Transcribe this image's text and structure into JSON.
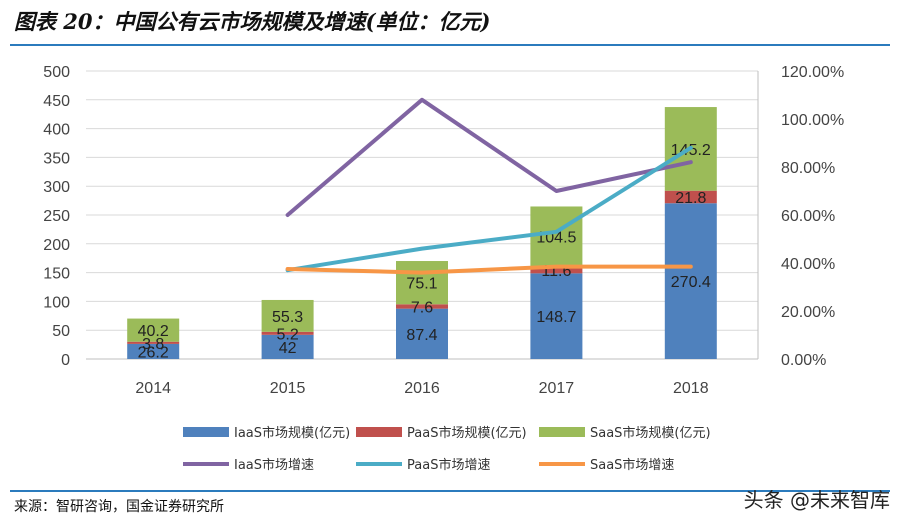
{
  "header": {
    "title": "图表 20：中国公有云市场规模及增速(单位：亿元)"
  },
  "footer": {
    "source": "来源：智研咨询，国金证券研究所",
    "watermark": "头条 @未来智库"
  },
  "colors": {
    "iaas": "#4f81bd",
    "paas": "#c0504d",
    "saas": "#9bbb59",
    "iaas_growth": "#8064a2",
    "paas_growth": "#4bacc6",
    "saas_growth": "#f79646",
    "rule": "#2b7bbd"
  },
  "chart_data": {
    "type": "bar",
    "stacked": true,
    "categories": [
      "2014",
      "2015",
      "2016",
      "2017",
      "2018"
    ],
    "ylim": [
      0,
      500
    ],
    "yticks": [
      0,
      50,
      100,
      150,
      200,
      250,
      300,
      350,
      400,
      450,
      500
    ],
    "y2lim": [
      0,
      1.2
    ],
    "y2ticks": [
      "0.00%",
      "20.00%",
      "40.00%",
      "60.00%",
      "80.00%",
      "100.00%",
      "120.00%"
    ],
    "series": [
      {
        "name": "IaaS市场规模(亿元)",
        "key": "iaas",
        "values": [
          26.2,
          42,
          87.4,
          148.7,
          270.4
        ],
        "labels": [
          "26.2",
          "42",
          "87.4",
          "148.7",
          "270.4"
        ]
      },
      {
        "name": "PaaS市场规模(亿元)",
        "key": "paas",
        "values": [
          3.8,
          5.2,
          7.6,
          11.6,
          21.8
        ],
        "labels": [
          "3.8",
          "5.2",
          "7.6",
          "11.6",
          "21.8"
        ]
      },
      {
        "name": "SaaS市场规模(亿元)",
        "key": "saas",
        "values": [
          40.2,
          55.3,
          75.1,
          104.5,
          145.2
        ],
        "labels": [
          "40.2",
          "55.3",
          "75.1",
          "104.5",
          "145.2"
        ]
      }
    ],
    "lines": [
      {
        "name": "IaaS市场增速",
        "key": "iaas_growth",
        "values": [
          null,
          0.6,
          1.08,
          0.7,
          0.82
        ]
      },
      {
        "name": "PaaS市场增速",
        "key": "paas_growth",
        "values": [
          null,
          0.37,
          0.46,
          0.53,
          0.88
        ]
      },
      {
        "name": "SaaS市场增速",
        "key": "saas_growth",
        "values": [
          null,
          0.375,
          0.36,
          0.385,
          0.385
        ]
      }
    ]
  }
}
